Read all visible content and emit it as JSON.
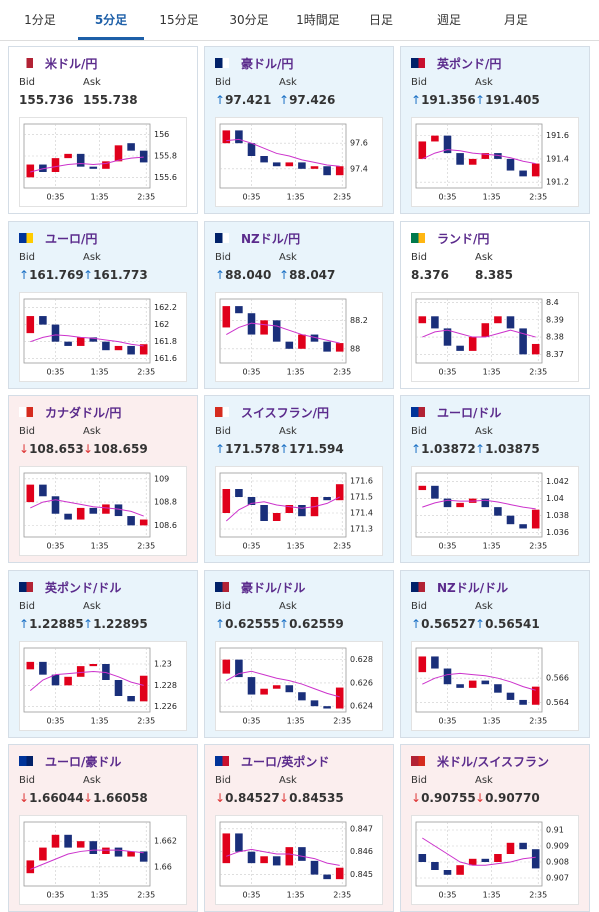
{
  "tabs": [
    "1分足",
    "5分足",
    "15分足",
    "30分足",
    "1時間足",
    "日足",
    "週足",
    "月足"
  ],
  "active_tab": 1,
  "labels": {
    "bid": "Bid",
    "ask": "Ask"
  },
  "up_color": "#e0001b",
  "down_color": "#1a2f7a",
  "ma_color": "#cc33cc",
  "cards": [
    {
      "title": "米ドル/円",
      "trend": null,
      "arrow": null,
      "bid": "155.736",
      "ask": "155.738",
      "chart": {
        "type": "candlestick",
        "ylim": [
          155.5,
          156.1
        ],
        "yticks": [
          155.6,
          155.8,
          156
        ],
        "xticks": [
          "0:35",
          "1:35",
          "2:35"
        ],
        "open": [
          155.6,
          155.72,
          155.65,
          155.78,
          155.82,
          155.7,
          155.68,
          155.75,
          155.92,
          155.85
        ],
        "close": [
          155.72,
          155.65,
          155.78,
          155.82,
          155.7,
          155.68,
          155.75,
          155.9,
          155.85,
          155.74
        ],
        "ma": [
          155.65,
          155.68,
          155.7,
          155.72,
          155.73,
          155.72,
          155.73,
          155.76,
          155.78,
          155.79
        ]
      }
    },
    {
      "title": "豪ドル/円",
      "trend": "up",
      "arrow": "↑",
      "bid": "97.421",
      "ask": "97.426",
      "chart": {
        "type": "candlestick",
        "ylim": [
          97.25,
          97.75
        ],
        "yticks": [
          97.4,
          97.6
        ],
        "xticks": [
          "0:35",
          "1:35",
          "2:35"
        ],
        "open": [
          97.6,
          97.7,
          97.6,
          97.5,
          97.45,
          97.42,
          97.45,
          97.4,
          97.42,
          97.35
        ],
        "close": [
          97.7,
          97.6,
          97.5,
          97.45,
          97.42,
          97.45,
          97.4,
          97.42,
          97.35,
          97.42
        ],
        "ma": [
          97.62,
          97.63,
          97.6,
          97.56,
          97.52,
          97.5,
          97.47,
          97.45,
          97.43,
          97.42
        ]
      }
    },
    {
      "title": "英ポンド/円",
      "trend": "up",
      "arrow": "↑",
      "bid": "191.356",
      "ask": "191.405",
      "chart": {
        "type": "candlestick",
        "ylim": [
          191.15,
          191.7
        ],
        "yticks": [
          191.2,
          191.4,
          191.6
        ],
        "xticks": [
          "0:35",
          "1:35",
          "2:35"
        ],
        "open": [
          191.4,
          191.55,
          191.6,
          191.45,
          191.35,
          191.4,
          191.45,
          191.4,
          191.3,
          191.25
        ],
        "close": [
          191.55,
          191.6,
          191.45,
          191.35,
          191.4,
          191.45,
          191.4,
          191.3,
          191.25,
          191.36
        ],
        "ma": [
          191.4,
          191.45,
          191.48,
          191.47,
          191.45,
          191.44,
          191.43,
          191.41,
          191.38,
          191.36
        ]
      }
    },
    {
      "title": "ユーロ/円",
      "trend": "up",
      "arrow": "↑",
      "bid": "161.769",
      "ask": "161.773",
      "chart": {
        "type": "candlestick",
        "ylim": [
          161.55,
          162.3
        ],
        "yticks": [
          161.6,
          161.8,
          162,
          162.2
        ],
        "xticks": [
          "0:35",
          "1:35",
          "2:35"
        ],
        "open": [
          161.9,
          162.1,
          162.0,
          161.8,
          161.75,
          161.85,
          161.8,
          161.7,
          161.75,
          161.65
        ],
        "close": [
          162.1,
          162.0,
          161.8,
          161.75,
          161.85,
          161.8,
          161.7,
          161.75,
          161.65,
          161.77
        ],
        "ma": [
          161.8,
          161.85,
          161.88,
          161.87,
          161.85,
          161.84,
          161.82,
          161.8,
          161.77,
          161.75
        ]
      }
    },
    {
      "title": "NZドル/円",
      "trend": "up",
      "arrow": "↑",
      "bid": "88.040",
      "ask": "88.047",
      "chart": {
        "type": "candlestick",
        "ylim": [
          87.9,
          88.35
        ],
        "yticks": [
          88,
          88.2
        ],
        "xticks": [
          "0:35",
          "1:35",
          "2:35"
        ],
        "open": [
          88.15,
          88.3,
          88.25,
          88.1,
          88.2,
          88.05,
          88.0,
          88.1,
          88.05,
          87.98
        ],
        "close": [
          88.3,
          88.25,
          88.1,
          88.2,
          88.05,
          88.0,
          88.1,
          88.05,
          87.98,
          88.04
        ],
        "ma": [
          88.1,
          88.15,
          88.18,
          88.17,
          88.16,
          88.13,
          88.1,
          88.08,
          88.06,
          88.04
        ]
      }
    },
    {
      "title": "ランド/円",
      "trend": null,
      "arrow": null,
      "bid": "8.376",
      "ask": "8.385",
      "chart": {
        "type": "candlestick",
        "ylim": [
          8.365,
          8.402
        ],
        "yticks": [
          8.37,
          8.38,
          8.39,
          8.4
        ],
        "xticks": [
          "0:35",
          "1:35",
          "2:35"
        ],
        "open": [
          8.388,
          8.392,
          8.385,
          8.375,
          8.372,
          8.38,
          8.388,
          8.392,
          8.385,
          8.37
        ],
        "close": [
          8.392,
          8.385,
          8.375,
          8.372,
          8.38,
          8.388,
          8.392,
          8.385,
          8.37,
          8.376
        ],
        "ma": [
          8.38,
          8.383,
          8.384,
          8.382,
          8.38,
          8.38,
          8.382,
          8.384,
          8.382,
          8.38
        ]
      }
    },
    {
      "title": "カナダドル/円",
      "trend": "down",
      "arrow": "↓",
      "bid": "108.653",
      "ask": "108.659",
      "chart": {
        "type": "candlestick",
        "ylim": [
          108.5,
          109.05
        ],
        "yticks": [
          108.6,
          108.8,
          109
        ],
        "xticks": [
          "0:35",
          "1:35",
          "2:35"
        ],
        "open": [
          108.8,
          108.95,
          108.85,
          108.7,
          108.65,
          108.75,
          108.7,
          108.78,
          108.68,
          108.6
        ],
        "close": [
          108.95,
          108.85,
          108.7,
          108.65,
          108.75,
          108.7,
          108.78,
          108.68,
          108.6,
          108.65
        ],
        "ma": [
          108.75,
          108.8,
          108.82,
          108.8,
          108.78,
          108.76,
          108.75,
          108.74,
          108.72,
          108.68
        ]
      }
    },
    {
      "title": "スイスフラン/円",
      "trend": "up",
      "arrow": "↑",
      "bid": "171.578",
      "ask": "171.594",
      "chart": {
        "type": "candlestick",
        "ylim": [
          171.25,
          171.65
        ],
        "yticks": [
          171.3,
          171.4,
          171.5,
          171.6
        ],
        "xticks": [
          "0:35",
          "1:35",
          "2:35"
        ],
        "open": [
          171.4,
          171.55,
          171.5,
          171.45,
          171.35,
          171.4,
          171.45,
          171.38,
          171.5,
          171.48
        ],
        "close": [
          171.55,
          171.5,
          171.45,
          171.35,
          171.4,
          171.45,
          171.38,
          171.5,
          171.48,
          171.58
        ],
        "ma": [
          171.35,
          171.42,
          171.46,
          171.47,
          171.45,
          171.44,
          171.43,
          171.44,
          171.46,
          171.5
        ]
      }
    },
    {
      "title": "ユーロ/ドル",
      "trend": "up",
      "arrow": "↑",
      "bid": "1.03872",
      "ask": "1.03875",
      "chart": {
        "type": "candlestick",
        "ylim": [
          1.0355,
          1.043
        ],
        "yticks": [
          1.036,
          1.038,
          1.04,
          1.042
        ],
        "xticks": [
          "0:35",
          "1:35",
          "2:35"
        ],
        "open": [
          1.041,
          1.0415,
          1.04,
          1.039,
          1.0395,
          1.04,
          1.039,
          1.038,
          1.037,
          1.0365
        ],
        "close": [
          1.0415,
          1.04,
          1.039,
          1.0395,
          1.04,
          1.039,
          1.038,
          1.037,
          1.0365,
          1.0387
        ],
        "ma": [
          1.039,
          1.0395,
          1.0398,
          1.0397,
          1.0397,
          1.0398,
          1.0396,
          1.0393,
          1.039,
          1.0388
        ]
      }
    },
    {
      "title": "英ポンド/ドル",
      "trend": "up",
      "arrow": "↑",
      "bid": "1.22885",
      "ask": "1.22895",
      "chart": {
        "type": "candlestick",
        "ylim": [
          1.2255,
          1.2315
        ],
        "yticks": [
          1.226,
          1.228,
          1.23
        ],
        "xticks": [
          "0:35",
          "1:35",
          "2:35"
        ],
        "open": [
          1.2295,
          1.2302,
          1.229,
          1.228,
          1.2288,
          1.2298,
          1.23,
          1.2285,
          1.227,
          1.2265
        ],
        "close": [
          1.2302,
          1.229,
          1.228,
          1.2288,
          1.2298,
          1.23,
          1.2285,
          1.227,
          1.2265,
          1.2289
        ],
        "ma": [
          1.2275,
          1.2285,
          1.229,
          1.2291,
          1.2292,
          1.2293,
          1.2292,
          1.2288,
          1.2283,
          1.228
        ]
      }
    },
    {
      "title": "豪ドル/ドル",
      "trend": "up",
      "arrow": "↑",
      "bid": "0.62555",
      "ask": "0.62559",
      "chart": {
        "type": "candlestick",
        "ylim": [
          0.6235,
          0.629
        ],
        "yticks": [
          0.624,
          0.626,
          0.628
        ],
        "xticks": [
          "0:35",
          "1:35",
          "2:35"
        ],
        "open": [
          0.6268,
          0.628,
          0.6265,
          0.625,
          0.6255,
          0.6258,
          0.6252,
          0.6245,
          0.624,
          0.6238
        ],
        "close": [
          0.628,
          0.6265,
          0.625,
          0.6255,
          0.6258,
          0.6252,
          0.6245,
          0.624,
          0.6238,
          0.6256
        ],
        "ma": [
          0.6262,
          0.6268,
          0.627,
          0.6267,
          0.6264,
          0.6262,
          0.6259,
          0.6255,
          0.6251,
          0.6248
        ]
      }
    },
    {
      "title": "NZドル/ドル",
      "trend": "up",
      "arrow": "↑",
      "bid": "0.56527",
      "ask": "0.56541",
      "chart": {
        "type": "candlestick",
        "ylim": [
          0.5632,
          0.5685
        ],
        "yticks": [
          0.564,
          0.566
        ],
        "xticks": [
          "0:35",
          "1:35",
          "2:35"
        ],
        "open": [
          0.5665,
          0.5678,
          0.5668,
          0.5655,
          0.5652,
          0.5658,
          0.5655,
          0.5648,
          0.5642,
          0.5638
        ],
        "close": [
          0.5678,
          0.5668,
          0.5655,
          0.5652,
          0.5658,
          0.5655,
          0.5648,
          0.5642,
          0.5638,
          0.5653
        ],
        "ma": [
          0.5655,
          0.566,
          0.5663,
          0.5664,
          0.5663,
          0.5662,
          0.566,
          0.5657,
          0.5653,
          0.565
        ]
      }
    },
    {
      "title": "ユーロ/豪ドル",
      "trend": "down",
      "arrow": "↓",
      "bid": "1.66044",
      "ask": "1.66058",
      "chart": {
        "type": "candlestick",
        "ylim": [
          1.6585,
          1.6635
        ],
        "yticks": [
          1.66,
          1.662
        ],
        "xticks": [
          "0:35",
          "1:35",
          "2:35"
        ],
        "open": [
          1.6595,
          1.6605,
          1.6615,
          1.6625,
          1.6615,
          1.662,
          1.661,
          1.6615,
          1.6608,
          1.6612
        ],
        "close": [
          1.6605,
          1.6615,
          1.6625,
          1.6615,
          1.662,
          1.661,
          1.6615,
          1.6608,
          1.6612,
          1.6604
        ],
        "ma": [
          1.6598,
          1.6602,
          1.6606,
          1.661,
          1.6612,
          1.6613,
          1.6613,
          1.6613,
          1.6612,
          1.6611
        ]
      }
    },
    {
      "title": "ユーロ/英ポンド",
      "trend": "down",
      "arrow": "↓",
      "bid": "0.84527",
      "ask": "0.84535",
      "chart": {
        "type": "candlestick",
        "ylim": [
          0.8445,
          0.8473
        ],
        "yticks": [
          0.845,
          0.846,
          0.847
        ],
        "xticks": [
          "0:35",
          "1:35",
          "2:35"
        ],
        "open": [
          0.8455,
          0.8468,
          0.846,
          0.8455,
          0.8458,
          0.8454,
          0.8462,
          0.8456,
          0.845,
          0.8448
        ],
        "close": [
          0.8468,
          0.846,
          0.8455,
          0.8458,
          0.8454,
          0.8462,
          0.8456,
          0.845,
          0.8448,
          0.8453
        ],
        "ma": [
          0.8458,
          0.846,
          0.8461,
          0.846,
          0.8459,
          0.8459,
          0.8458,
          0.8457,
          0.8455,
          0.8454
        ]
      }
    },
    {
      "title": "米ドル/スイスフラン",
      "trend": "down",
      "arrow": "↓",
      "bid": "0.90755",
      "ask": "0.90770",
      "chart": {
        "type": "candlestick",
        "ylim": [
          0.9065,
          0.9105
        ],
        "yticks": [
          0.907,
          0.908,
          0.909,
          0.91
        ],
        "xticks": [
          "0:35",
          "1:35",
          "2:35"
        ],
        "open": [
          0.9085,
          0.908,
          0.9075,
          0.9072,
          0.9078,
          0.9082,
          0.908,
          0.9085,
          0.9092,
          0.9088
        ],
        "close": [
          0.908,
          0.9075,
          0.9072,
          0.9078,
          0.9082,
          0.908,
          0.9085,
          0.9092,
          0.9088,
          0.9076
        ],
        "ma": [
          0.9095,
          0.909,
          0.9085,
          0.908,
          0.9078,
          0.9078,
          0.9079,
          0.908,
          0.9082,
          0.9083
        ]
      }
    }
  ]
}
